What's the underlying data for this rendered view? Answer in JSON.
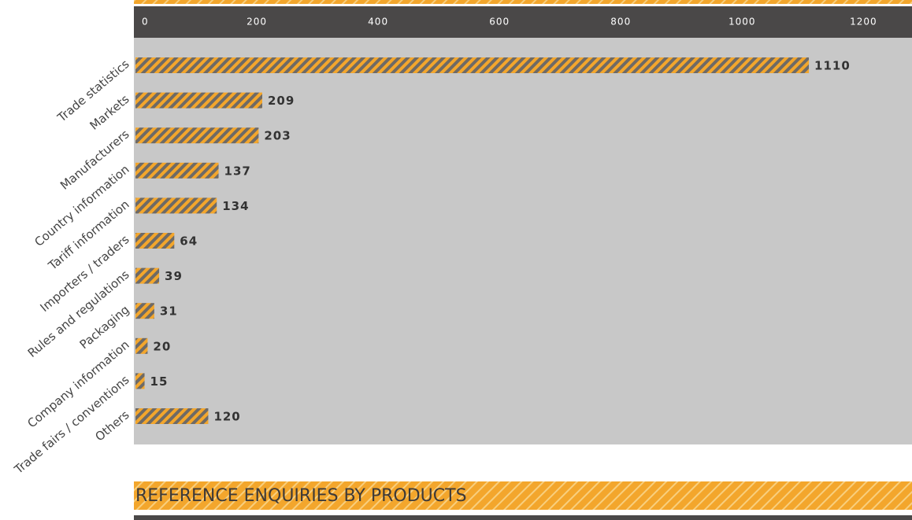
{
  "chart_data": {
    "type": "hbar",
    "categories": [
      "Trade statistics",
      "Markets",
      "Manufacturers",
      "Country information",
      "Tariff information",
      "Importers / traders",
      "Rules and regulations",
      "Packaging",
      "Company information",
      "Trade fairs / conventions",
      "Others"
    ],
    "values": [
      1110,
      209,
      203,
      137,
      134,
      64,
      39,
      31,
      20,
      15,
      120
    ],
    "color": "#f3a62c",
    "stripe_color": "#6e6a66",
    "xlim": [
      0,
      1280
    ],
    "xticks": [
      0,
      200,
      400,
      600,
      800,
      1000,
      1200
    ]
  },
  "next_section": {
    "title": "REFERENCE ENQUIRIES BY PRODUCTS"
  }
}
